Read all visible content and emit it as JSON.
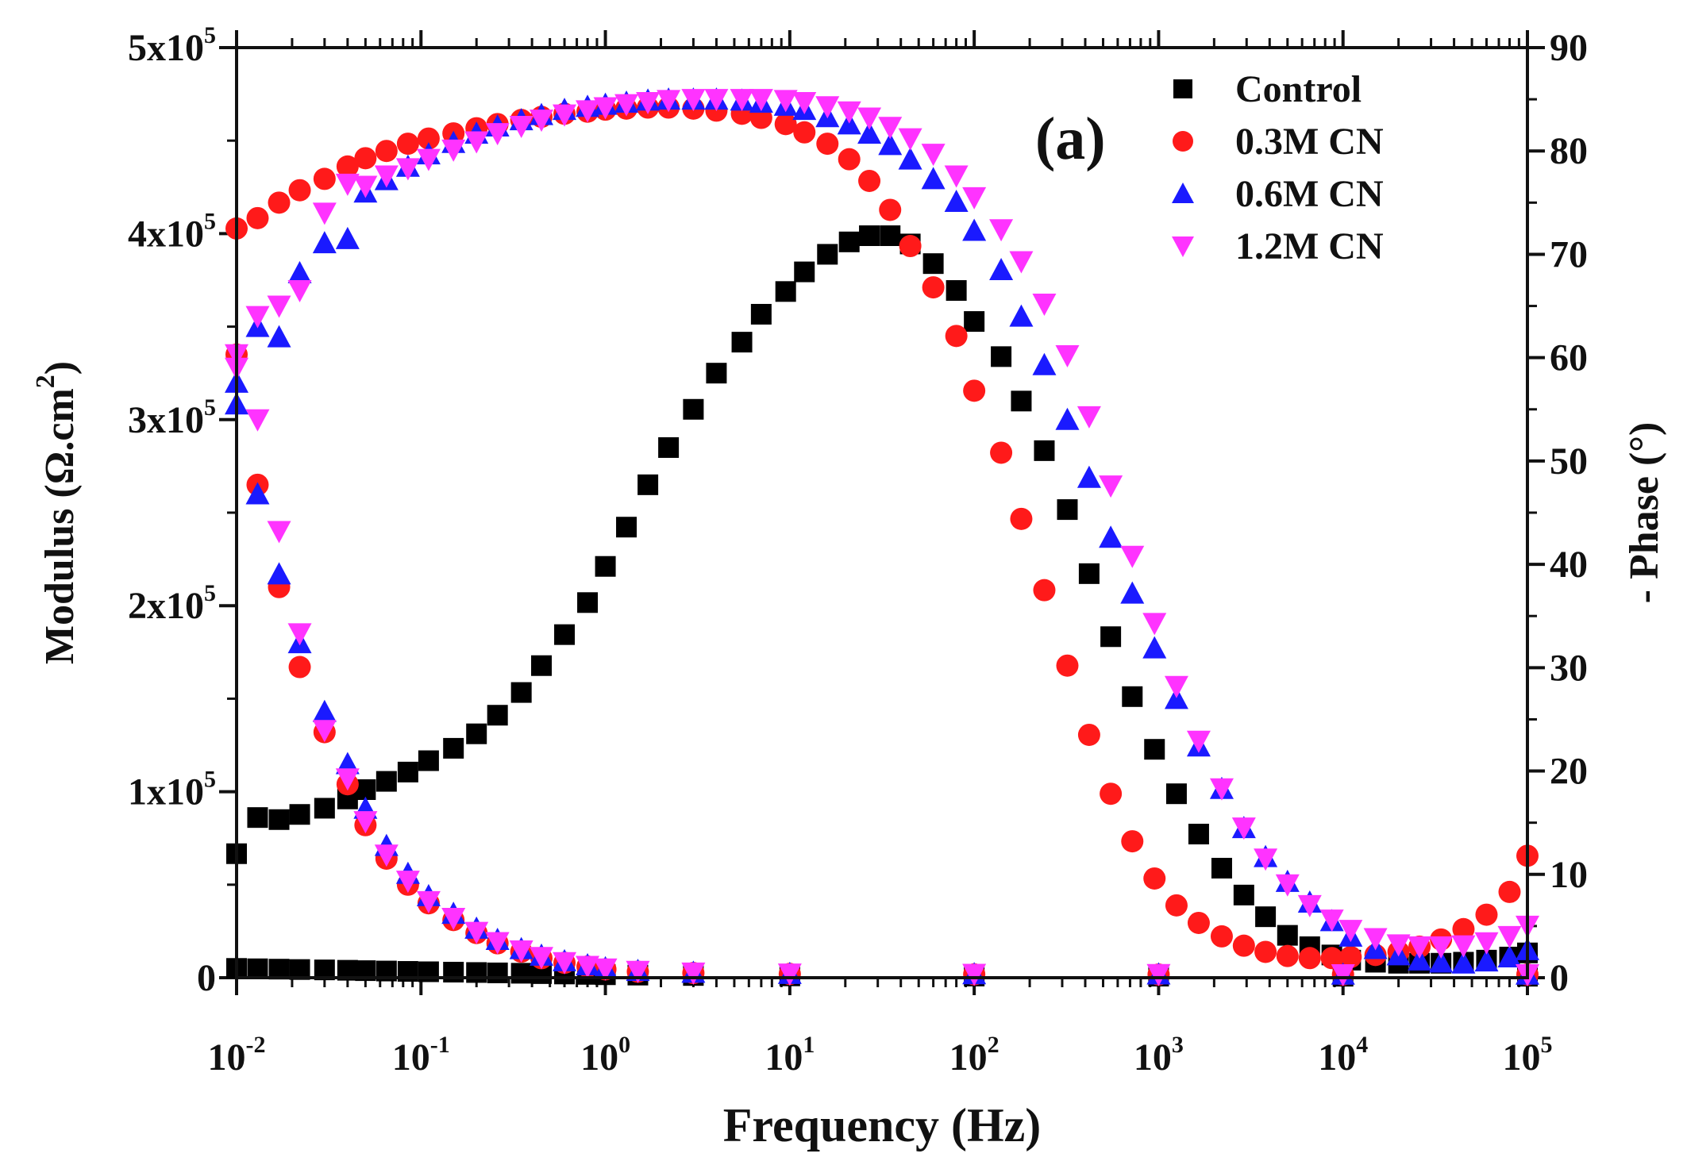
{
  "chart_data": {
    "type": "scatter",
    "panel_label": "(a)",
    "x_scale": "log",
    "xlim": [
      0.01,
      100000
    ],
    "xlabel": "Frequency (Hz)",
    "ylabel_left": "Modulus (Ω.cm²)",
    "ylabel_left_parts": [
      "Modulus (Ω.cm",
      "2",
      ")"
    ],
    "ylim_left": [
      0,
      500000
    ],
    "ylabel_right": "- Phase (°)",
    "ylim_right": [
      0,
      90
    ],
    "x_ticks": [
      {
        "value": 0.01,
        "base": "10",
        "exp": "-2"
      },
      {
        "value": 0.1,
        "base": "10",
        "exp": "-1"
      },
      {
        "value": 1,
        "base": "10",
        "exp": "0"
      },
      {
        "value": 10,
        "base": "10",
        "exp": "1"
      },
      {
        "value": 100,
        "base": "10",
        "exp": "2"
      },
      {
        "value": 1000,
        "base": "10",
        "exp": "3"
      },
      {
        "value": 10000,
        "base": "10",
        "exp": "4"
      },
      {
        "value": 100000,
        "base": "10",
        "exp": "5"
      }
    ],
    "y_left_ticks": [
      {
        "value": 0,
        "text": "0",
        "exp": ""
      },
      {
        "value": 100000,
        "text": "1x10",
        "exp": "5"
      },
      {
        "value": 200000,
        "text": "2x10",
        "exp": "5"
      },
      {
        "value": 300000,
        "text": "3x10",
        "exp": "5"
      },
      {
        "value": 400000,
        "text": "4x10",
        "exp": "5"
      },
      {
        "value": 500000,
        "text": "5x10",
        "exp": "5"
      }
    ],
    "y_right_ticks": [
      0,
      10,
      20,
      30,
      40,
      50,
      60,
      70,
      80,
      90
    ],
    "legend_position": "top-right",
    "series": [
      {
        "name": "Control",
        "marker": "square",
        "color": "#000000",
        "modulus": {
          "x": [
            0.01,
            0.013,
            0.017,
            0.022,
            0.03,
            0.04,
            0.05,
            0.065,
            0.085,
            0.11,
            0.15,
            0.2,
            0.26,
            0.35,
            0.45,
            0.6,
            0.8,
            1,
            1.5,
            3,
            10,
            100,
            1000,
            10000,
            100000
          ],
          "y": [
            5000,
            4800,
            4600,
            4400,
            4200,
            4000,
            3800,
            3600,
            3400,
            3200,
            3000,
            2800,
            2600,
            2400,
            2200,
            2000,
            1800,
            1600,
            1400,
            1200,
            1000,
            900,
            850,
            800,
            800
          ]
        },
        "phase": {
          "x": [
            0.01,
            0.013,
            0.017,
            0.022,
            0.03,
            0.04,
            0.05,
            0.065,
            0.085,
            0.11,
            0.15,
            0.2,
            0.26,
            0.35,
            0.45,
            0.6,
            0.8,
            1,
            1.3,
            1.7,
            2.2,
            3,
            4,
            5.5,
            7,
            9.5,
            12,
            16,
            21,
            27,
            35,
            45,
            60,
            80,
            100,
            140,
            180,
            240,
            320,
            420,
            550,
            720,
            950,
            1250,
            1650,
            2200,
            2900,
            3800,
            5000,
            6600,
            8700,
            11000,
            15000,
            20000,
            26000,
            34000,
            45000,
            60000,
            80000,
            100000
          ],
          "y": [
            12,
            15.5,
            15.3,
            15.8,
            16.4,
            17.3,
            18.2,
            19,
            19.9,
            21,
            22.2,
            23.6,
            25.4,
            27.6,
            30.2,
            33.2,
            36.3,
            39.8,
            43.6,
            47.7,
            51.3,
            55,
            58.5,
            61.5,
            64.2,
            66.4,
            68.3,
            70,
            71.2,
            71.8,
            71.8,
            71,
            69.1,
            66.5,
            63.5,
            60.1,
            55.8,
            51,
            45.3,
            39.1,
            33,
            27.2,
            22.1,
            17.8,
            13.9,
            10.6,
            8,
            5.9,
            4.1,
            3,
            2.2,
            1.7,
            1.5,
            1.4,
            1.4,
            1.4,
            1.5,
            1.7,
            2,
            2.4
          ]
        }
      },
      {
        "name": "0.3M CN",
        "marker": "circle",
        "color": "#ff1a1a",
        "modulus": {
          "x": [
            0.01,
            0.013,
            0.017,
            0.022,
            0.03,
            0.04,
            0.05,
            0.065,
            0.085,
            0.11,
            0.15,
            0.2,
            0.26,
            0.35,
            0.45,
            0.6,
            0.8,
            1,
            1.5,
            3,
            10,
            100,
            1000,
            10000,
            100000
          ],
          "y": [
            335000,
            265000,
            210000,
            167000,
            132000,
            104000,
            82000,
            64000,
            50000,
            40000,
            31000,
            24000,
            18500,
            14000,
            10500,
            8000,
            6000,
            4500,
            3200,
            2500,
            2000,
            1800,
            1700,
            1700,
            1700
          ]
        },
        "phase": {
          "x": [
            0.01,
            0.013,
            0.017,
            0.022,
            0.03,
            0.04,
            0.05,
            0.065,
            0.085,
            0.11,
            0.15,
            0.2,
            0.26,
            0.35,
            0.45,
            0.6,
            0.8,
            1,
            1.3,
            1.7,
            2.2,
            3,
            4,
            5.5,
            7,
            9.5,
            12,
            16,
            21,
            27,
            35,
            45,
            60,
            80,
            100,
            140,
            180,
            240,
            320,
            420,
            550,
            720,
            950,
            1250,
            1650,
            2200,
            2900,
            3800,
            5000,
            6600,
            8700,
            11000,
            15000,
            20000,
            26000,
            34000,
            45000,
            60000,
            80000,
            100000
          ],
          "y": [
            72.5,
            73.5,
            75,
            76.2,
            77.3,
            78.5,
            79.3,
            80,
            80.7,
            81.2,
            81.7,
            82.2,
            82.6,
            83,
            83.3,
            83.6,
            83.8,
            84,
            84.1,
            84.2,
            84.2,
            84.1,
            83.9,
            83.6,
            83.2,
            82.6,
            81.8,
            80.7,
            79.2,
            77.1,
            74.3,
            70.8,
            66.8,
            62.1,
            56.8,
            50.8,
            44.4,
            37.5,
            30.2,
            23.5,
            17.8,
            13.2,
            9.6,
            7,
            5.3,
            4,
            3.1,
            2.5,
            2.1,
            1.9,
            1.9,
            2,
            2.2,
            2.5,
            3,
            3.7,
            4.7,
            6.1,
            8.3,
            11.8
          ]
        }
      },
      {
        "name": "0.6M CN",
        "marker": "triangle-up",
        "color": "#1a1aff",
        "modulus": {
          "x": [
            0.01,
            0.013,
            0.017,
            0.022,
            0.03,
            0.04,
            0.05,
            0.065,
            0.085,
            0.11,
            0.15,
            0.2,
            0.26,
            0.35,
            0.45,
            0.6,
            0.8,
            1,
            1.5,
            3,
            10,
            100,
            1000,
            10000,
            100000
          ],
          "y": [
            320000,
            260000,
            217000,
            180000,
            143000,
            115000,
            91000,
            71000,
            56000,
            44000,
            34500,
            26500,
            20500,
            15500,
            12000,
            9000,
            6800,
            5200,
            3800,
            2800,
            2200,
            2000,
            1900,
            1800,
            1800
          ]
        },
        "phase": {
          "x": [
            0.01,
            0.013,
            0.017,
            0.022,
            0.03,
            0.04,
            0.05,
            0.065,
            0.085,
            0.11,
            0.15,
            0.2,
            0.26,
            0.35,
            0.45,
            0.6,
            0.8,
            1,
            1.3,
            1.7,
            2.2,
            3,
            4,
            5.5,
            7,
            9.5,
            12,
            16,
            21,
            27,
            35,
            45,
            60,
            80,
            100,
            140,
            180,
            240,
            320,
            420,
            550,
            720,
            950,
            1250,
            1650,
            2200,
            2900,
            3800,
            5000,
            6600,
            8700,
            11000,
            15000,
            20000,
            26000,
            34000,
            45000,
            60000,
            80000,
            100000
          ],
          "y": [
            55.5,
            63,
            62,
            68.2,
            71.1,
            71.5,
            76,
            77.2,
            78.5,
            79.7,
            80.8,
            81.7,
            82.4,
            83,
            83.5,
            84,
            84.3,
            84.5,
            84.7,
            84.9,
            85,
            85,
            85,
            84.9,
            84.7,
            84.4,
            84,
            83.3,
            82.6,
            81.7,
            80.6,
            79.2,
            77.3,
            75.1,
            72.3,
            68.5,
            64,
            59.3,
            54,
            48.4,
            42.6,
            37.2,
            31.9,
            27,
            22.4,
            18.3,
            14.5,
            11.7,
            9.3,
            7.3,
            5.5,
            4,
            2.8,
            2.2,
            1.7,
            1.5,
            1.4,
            1.6,
            2,
            2.7
          ]
        }
      },
      {
        "name": "1.2M CN",
        "marker": "triangle-down",
        "color": "#ff33ff",
        "modulus": {
          "x": [
            0.01,
            0.013,
            0.017,
            0.022,
            0.03,
            0.04,
            0.05,
            0.065,
            0.085,
            0.11,
            0.15,
            0.2,
            0.26,
            0.35,
            0.45,
            0.6,
            0.8,
            1,
            1.5,
            3,
            10,
            100,
            1000,
            10000,
            100000
          ],
          "y": [
            335000,
            300000,
            240000,
            185000,
            133000,
            107000,
            84000,
            66000,
            52000,
            41000,
            32000,
            24500,
            19000,
            14500,
            11000,
            8200,
            6200,
            4800,
            3500,
            2600,
            2100,
            1900,
            1800,
            1700,
            1700
          ]
        },
        "phase": {
          "x": [
            0.01,
            0.013,
            0.017,
            0.022,
            0.03,
            0.04,
            0.05,
            0.065,
            0.085,
            0.11,
            0.15,
            0.2,
            0.26,
            0.35,
            0.45,
            0.6,
            0.8,
            1,
            1.3,
            1.7,
            2.2,
            3,
            4,
            5.5,
            7,
            9.5,
            12,
            16,
            21,
            27,
            35,
            45,
            60,
            80,
            100,
            140,
            180,
            240,
            320,
            420,
            550,
            720,
            950,
            1250,
            1650,
            2200,
            2900,
            3800,
            5000,
            6600,
            8700,
            11000,
            15000,
            20000,
            26000,
            34000,
            45000,
            60000,
            80000,
            100000
          ],
          "y": [
            59,
            64,
            65,
            66.5,
            74,
            76.8,
            76.6,
            77.6,
            78.3,
            79.2,
            80.1,
            80.9,
            81.7,
            82.4,
            83,
            83.5,
            83.9,
            84.2,
            84.5,
            84.7,
            84.9,
            85,
            85,
            85,
            85,
            84.9,
            84.7,
            84.3,
            83.8,
            83.2,
            82.3,
            81.2,
            79.7,
            77.6,
            75.5,
            72.4,
            69.3,
            65.2,
            60.2,
            54.3,
            47.6,
            40.8,
            34.3,
            28.2,
            22.9,
            18.3,
            14.5,
            11.5,
            9,
            7,
            5.6,
            4.6,
            3.8,
            3.2,
            3,
            3,
            3.1,
            3.4,
            4,
            5
          ]
        }
      }
    ]
  }
}
